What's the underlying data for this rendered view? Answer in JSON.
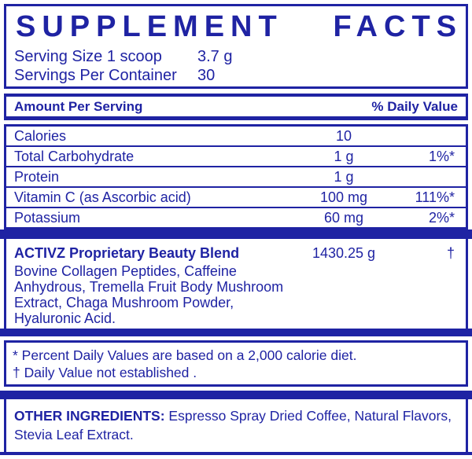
{
  "colors": {
    "primary_blue": "#1f23a3",
    "background": "#ffffff"
  },
  "title": "SUPPLEMENT FACTS",
  "title_words": [
    "SUPPLEMENT",
    "FACTS"
  ],
  "serving": {
    "size_label": "Serving Size 1 scoop",
    "size_value": "3.7 g",
    "per_container_label": "Servings Per Container",
    "per_container_value": "30"
  },
  "table": {
    "header_left": "Amount Per Serving",
    "header_right": "% Daily Value",
    "rows": [
      {
        "name": "Calories",
        "amount": "10",
        "dv": ""
      },
      {
        "name": "Total Carbohydrate",
        "amount": "1 g",
        "dv": "1%*"
      },
      {
        "name": "Protein",
        "amount": "1 g",
        "dv": ""
      },
      {
        "name": "Vitamin C (as Ascorbic acid)",
        "amount": "100 mg",
        "dv": "111%*"
      },
      {
        "name": "Potassium",
        "amount": "60 mg",
        "dv": "2%*"
      }
    ]
  },
  "blend": {
    "name": "ACTIVZ Proprietary Beauty Blend",
    "amount": "1430.25 g",
    "dv": "†",
    "ingredients_lines": [
      "Bovine Collagen Peptides, Caffeine",
      "Anhydrous, Tremella Fruit Body Mushroom",
      "Extract, Chaga Mushroom Powder,",
      "Hyaluronic Acid."
    ]
  },
  "footnotes": [
    "* Percent Daily Values are based on a 2,000 calorie diet.",
    "† Daily Value not established ."
  ],
  "other_ingredients": {
    "label": "OTHER INGREDIENTS:",
    "line1_rest": " Espresso Spray Dried Coffee, Natural Flavors,",
    "line2": "Stevia Leaf Extract."
  }
}
